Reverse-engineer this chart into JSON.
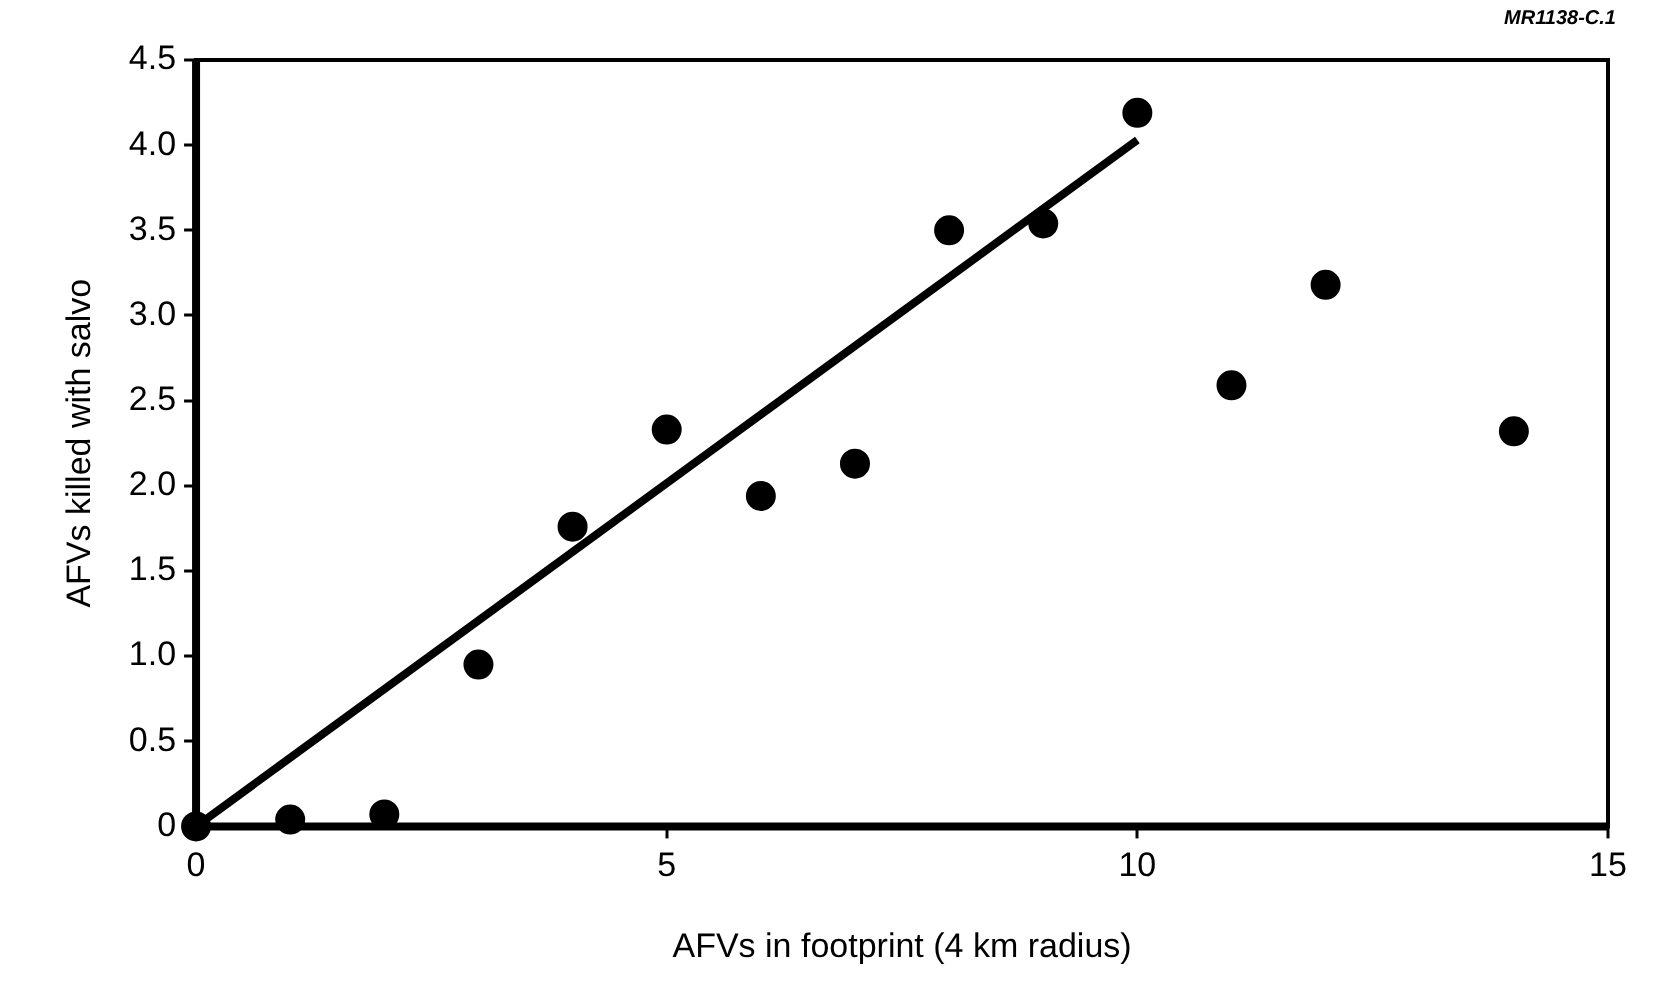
{
  "chart_data": {
    "type": "scatter",
    "xlabel": "AFVs in footprint (4 km radius)",
    "ylabel": "AFVs killed with salvo",
    "annotations": [
      "MR1138-C.1"
    ],
    "series": [
      {
        "color": "#000000",
        "x": [
          0,
          1,
          2,
          3,
          4,
          5,
          6,
          7,
          8,
          9,
          10,
          11,
          12,
          14
        ],
        "values": [
          0,
          0.04,
          0.07,
          0.95,
          1.76,
          2.33,
          1.94,
          2.13,
          3.5,
          3.54,
          4.19,
          2.59,
          3.18,
          2.32
        ]
      },
      {
        "type": "line",
        "color": "#000000",
        "x": [
          0,
          10
        ],
        "values": [
          0,
          4.03
        ],
        "marker": "none"
      }
    ],
    "xlim": [
      0,
      15
    ],
    "xticks": [
      0,
      5,
      10,
      15
    ],
    "ylim": [
      0,
      4.5
    ],
    "yticks": [
      0,
      {
        "value": 0.5,
        "label": "0.5"
      },
      {
        "value": 1,
        "label": "1.0"
      },
      {
        "value": 1.5,
        "label": "1.5"
      },
      {
        "value": 2,
        "label": "2.0"
      },
      {
        "value": 2.5,
        "label": "2.5"
      },
      {
        "value": 3,
        "label": "3.0"
      },
      {
        "value": 3.5,
        "label": "3.5"
      },
      {
        "value": 4,
        "label": "4.0"
      },
      {
        "value": 4.5,
        "label": "4.5"
      }
    ],
    "grid": false,
    "legend": false,
    "marker": "circle"
  }
}
